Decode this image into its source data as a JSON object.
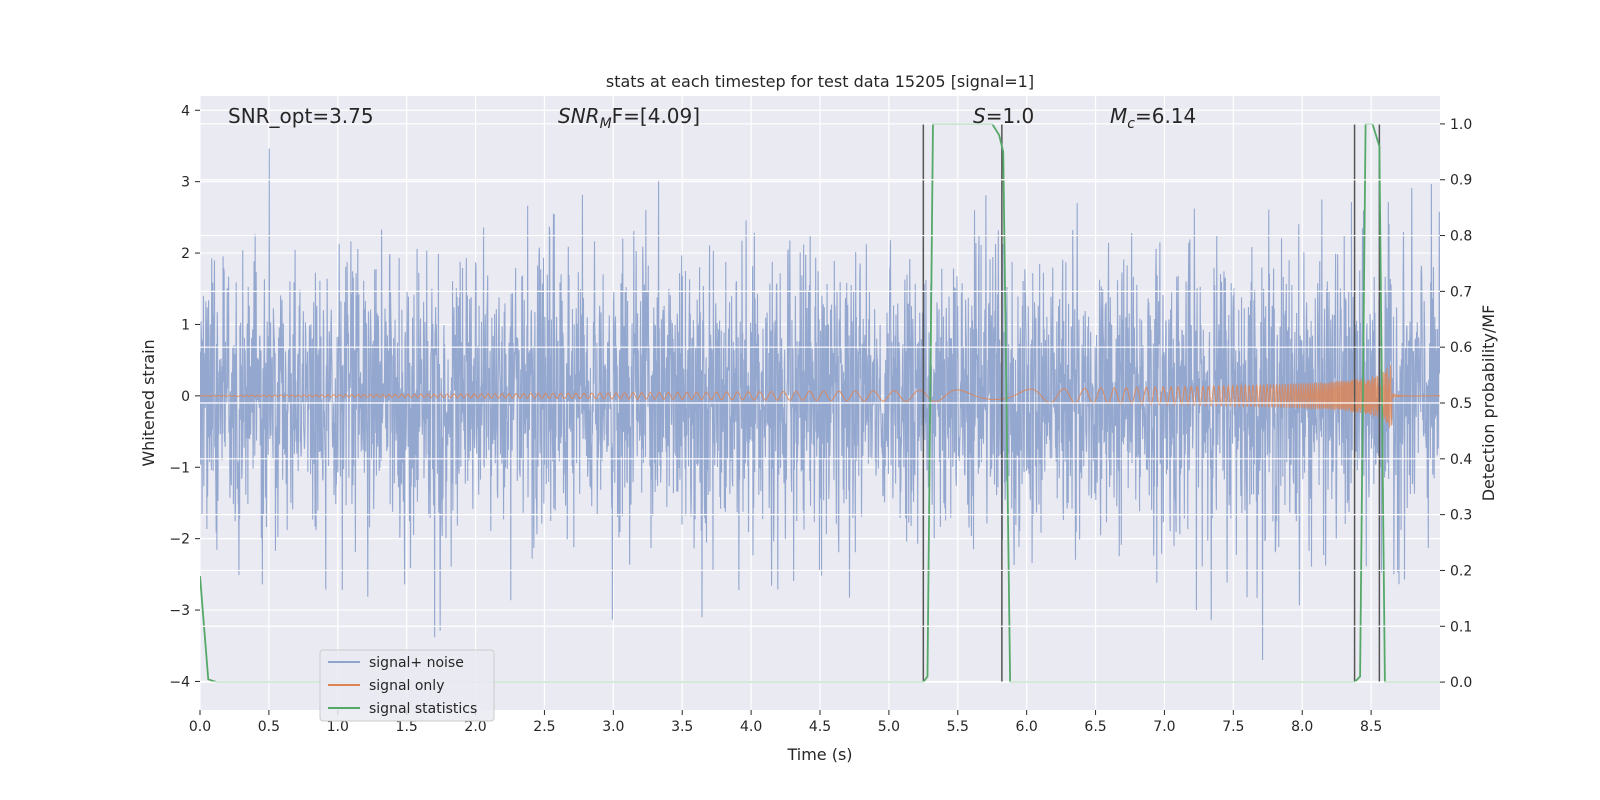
{
  "chart_data": {
    "type": "line",
    "title": "stats at each timestep for test data 15205 [signal=1]",
    "xlabel": "Time (s)",
    "ylabel": "Whitened strain",
    "y2label": "Detection probability/MF",
    "xlim": [
      0,
      9.0
    ],
    "ylim": [
      -4.4,
      4.2
    ],
    "y2lim": [
      -0.05,
      1.05
    ],
    "x_ticks": [
      "0.0",
      "0.5",
      "1.0",
      "1.5",
      "2.0",
      "2.5",
      "3.0",
      "3.5",
      "4.0",
      "4.5",
      "5.0",
      "5.5",
      "6.0",
      "6.5",
      "7.0",
      "7.5",
      "8.0",
      "8.5"
    ],
    "y_ticks": [
      "4",
      "3",
      "2",
      "1",
      "0",
      "−1",
      "−2",
      "−3",
      "−4"
    ],
    "y2_ticks": [
      "1.0",
      "0.9",
      "0.8",
      "0.7",
      "0.6",
      "0.5",
      "0.4",
      "0.3",
      "0.2",
      "0.1",
      "0.0"
    ],
    "grid": true,
    "legend_position": "lower-left",
    "annotations": {
      "snr_opt": "SNR_opt=3.75",
      "snr_mf_base": "SNR",
      "snr_mf_sub": "M",
      "snr_mf_rest": "F=[4.09]",
      "s_value": "=1.0",
      "s_symbol": "S",
      "mc_symbol": "M",
      "mc_sub": "c",
      "mc_value": "=6.14"
    },
    "series": [
      {
        "name": "signal+ noise",
        "color": "#8fa3cc",
        "noise_sigma": 1.0,
        "peak_envelope": 2.2
      },
      {
        "name": "signal only",
        "color": "#dd8452",
        "chirp_end": 8.65,
        "amplitude_end": 0.45
      },
      {
        "name": "signal statistics",
        "color": "#55a868",
        "axis": "y2",
        "x": [
          0.0,
          0.06,
          0.12,
          5.25,
          5.28,
          5.32,
          5.75,
          5.8,
          5.83,
          5.88,
          5.92,
          8.38,
          8.42,
          8.46,
          8.51,
          8.56,
          8.6,
          8.64,
          8.7,
          9.0
        ],
        "y": [
          0.19,
          0.005,
          0.0,
          0.0,
          0.01,
          1.0,
          1.0,
          0.98,
          0.95,
          0.0,
          0.0,
          0.0,
          0.01,
          1.0,
          1.0,
          0.96,
          0.0,
          0.0,
          0.0,
          0.0
        ]
      }
    ],
    "vlines": [
      5.25,
      5.82,
      8.38,
      8.56
    ]
  }
}
